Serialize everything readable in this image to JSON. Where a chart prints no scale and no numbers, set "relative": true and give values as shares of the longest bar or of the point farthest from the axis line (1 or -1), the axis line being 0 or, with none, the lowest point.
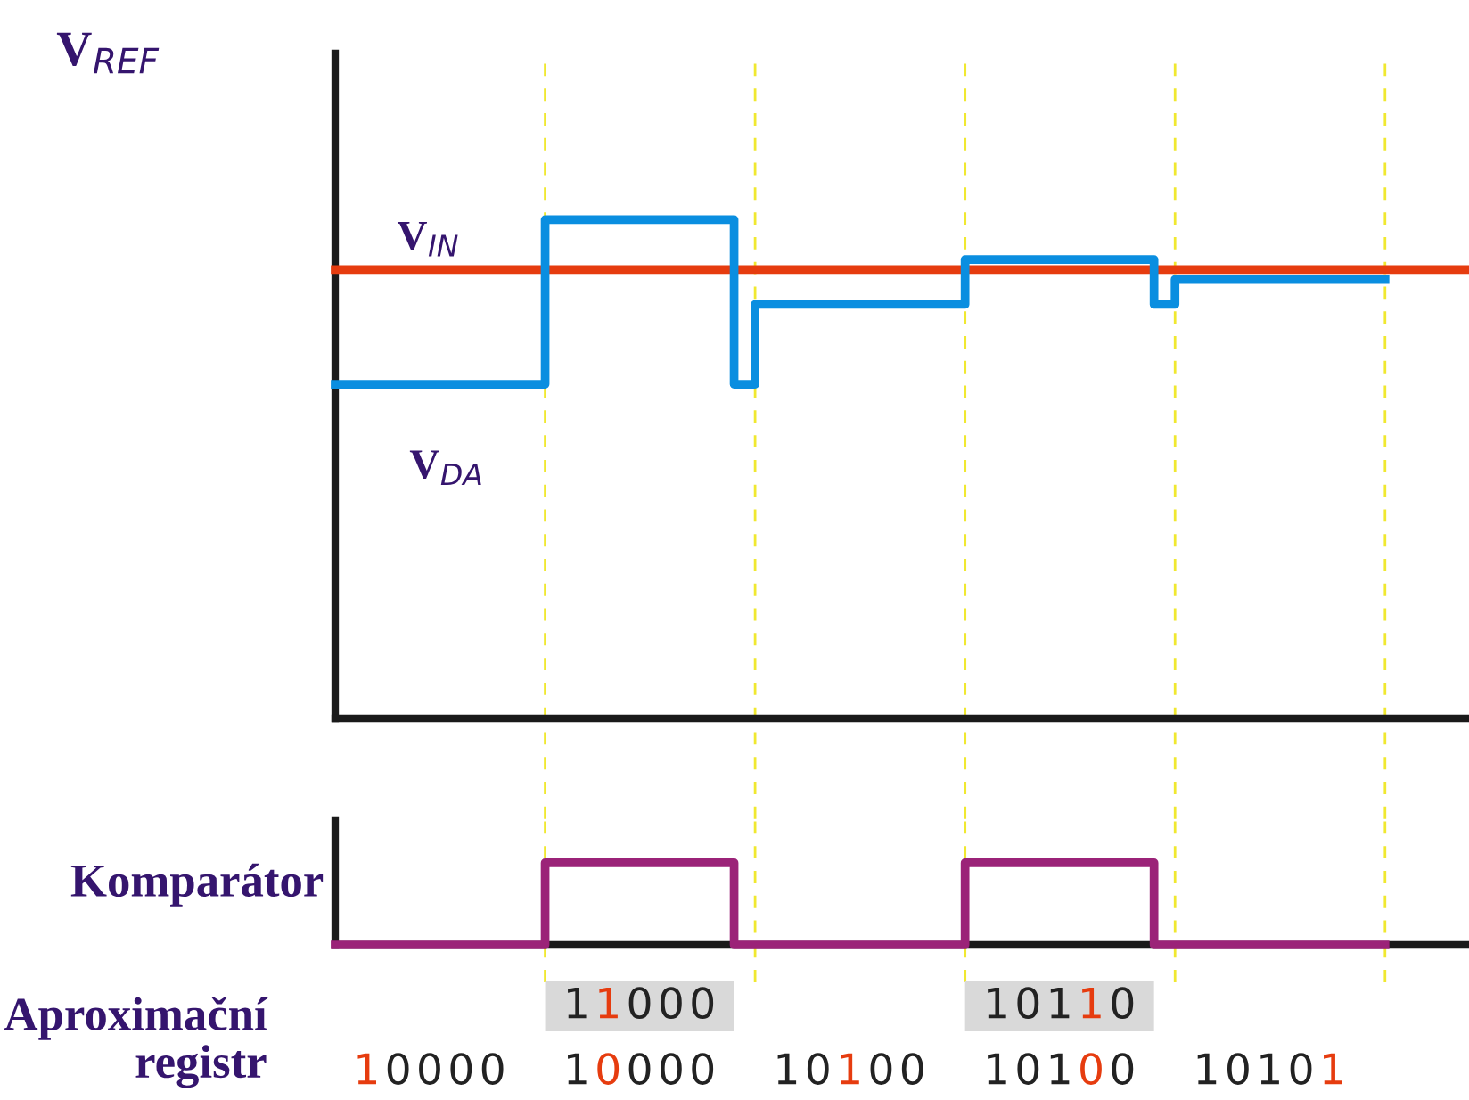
{
  "chart_data": [
    {
      "type": "step",
      "relative": true,
      "grid": "x",
      "legend": false,
      "categories": [
        null,
        null,
        null,
        null,
        null,
        null,
        null,
        null,
        null,
        null,
        null,
        null,
        null,
        null,
        null,
        null,
        null,
        null,
        null,
        null,
        null,
        null,
        null,
        null,
        null,
        null,
        null,
        null,
        null,
        null,
        null,
        null,
        null,
        null,
        null,
        null,
        null,
        null,
        null,
        null,
        null,
        null,
        null,
        null,
        null,
        null,
        null,
        null,
        null,
        null,
        null,
        null,
        null,
        null,
        null
      ],
      "annotations": [
        "V$_{REF}$"
      ],
      "series": [
        {
          "name": "V$_{IN}$",
          "type": "line",
          "color": "#e63c0f",
          "values": [
            0.9,
            0.9,
            0.9,
            0.9,
            0.9,
            0.9,
            0.9,
            0.9,
            0.9,
            0.9,
            0.9,
            0.9,
            0.9,
            0.9,
            0.9,
            0.9,
            0.9,
            0.9,
            0.9,
            0.9,
            0.9,
            0.9,
            0.9,
            0.9,
            0.9,
            0.9,
            0.9,
            0.9,
            0.9,
            0.9,
            0.9,
            0.9,
            0.9,
            0.9,
            0.9,
            0.9,
            0.9,
            0.9,
            0.9,
            0.9,
            0.9,
            0.9,
            0.9,
            0.9,
            0.9,
            0.9,
            0.9,
            0.9,
            0.9,
            0.9,
            0.9,
            0.9,
            0.9,
            0.9,
            0.9
          ]
        },
        {
          "name": "V$_{DA}$",
          "type": "step",
          "color": "#0a8ee0",
          "values": [
            0.67,
            0.67,
            0.67,
            0.67,
            0.67,
            0.67,
            0.67,
            0.67,
            0.67,
            0.67,
            1,
            1,
            1,
            1,
            1,
            1,
            1,
            1,
            1,
            0.67,
            0.83,
            0.83,
            0.83,
            0.83,
            0.83,
            0.83,
            0.83,
            0.83,
            0.83,
            0.83,
            0.92,
            0.92,
            0.92,
            0.92,
            0.92,
            0.92,
            0.92,
            0.92,
            0.92,
            0.83,
            0.88,
            0.88,
            0.88,
            0.88,
            0.88,
            0.88,
            0.88,
            0.88,
            0.88,
            0.88,
            0.88,
            null,
            null,
            null,
            null
          ]
        }
      ]
    },
    {
      "type": "step",
      "relative": true,
      "grid": "x",
      "ylabel": "Komparátor",
      "legend": false,
      "categories": [
        null,
        null,
        null,
        null,
        null,
        null,
        null,
        null,
        null,
        null,
        null,
        null,
        null,
        null,
        null,
        null,
        null,
        null,
        null,
        null,
        null,
        null,
        null,
        null,
        null,
        null,
        null,
        null,
        null,
        null,
        null,
        null,
        null,
        null,
        null,
        null,
        null,
        null,
        null,
        null,
        null,
        null,
        null,
        null,
        null,
        null,
        null,
        null,
        null,
        null,
        null,
        null,
        null,
        null,
        null
      ],
      "series": [
        {
          "color": "#9b2378",
          "values": [
            0,
            0,
            0,
            0,
            0,
            0,
            0,
            0,
            0,
            0,
            1,
            1,
            1,
            1,
            1,
            1,
            1,
            1,
            1,
            0,
            0,
            0,
            0,
            0,
            0,
            0,
            0,
            0,
            0,
            0,
            1,
            1,
            1,
            1,
            1,
            1,
            1,
            1,
            1,
            0,
            0,
            0,
            0,
            0,
            0,
            0,
            0,
            0,
            0,
            0,
            0,
            null,
            null,
            null,
            null
          ]
        }
      ]
    },
    {
      "type": "other",
      "title": "Aproximační\nregistr",
      "color": "#e63c0f",
      "annotations": [
        "11000",
        "10110",
        "10000",
        "10000",
        "10100",
        "10100",
        "10101"
      ]
    }
  ]
}
